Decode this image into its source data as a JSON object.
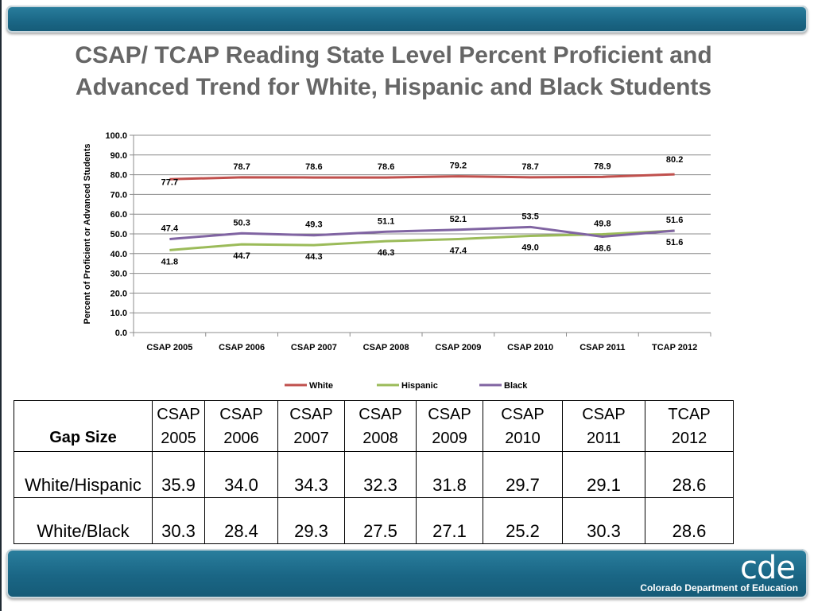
{
  "slide": {
    "title_line1": "CSAP/ TCAP Reading State Level  Percent Proficient and",
    "title_line2": "Advanced Trend for White, Hispanic and Black Students"
  },
  "chart_data": {
    "type": "line",
    "ylabel": "Percent of  Proficient or Advanced Students",
    "xlabel": "",
    "ylim": [
      0,
      100
    ],
    "yticks": [
      "0.0",
      "10.0",
      "20.0",
      "30.0",
      "40.0",
      "50.0",
      "60.0",
      "70.0",
      "80.0",
      "90.0",
      "100.0"
    ],
    "grid": true,
    "legend_position": "bottom",
    "categories": [
      "CSAP 2005",
      "CSAP 2006",
      "CSAP 2007",
      "CSAP 2008",
      "CSAP 2009",
      "CSAP 2010",
      "CSAP 2011",
      "TCAP 2012"
    ],
    "series": [
      {
        "name": "White",
        "color": "#c0504d",
        "values": [
          77.7,
          78.7,
          78.6,
          78.6,
          79.2,
          78.7,
          78.9,
          80.2
        ],
        "labels": [
          "77.7",
          "78.7",
          "78.6",
          "78.6",
          "79.2",
          "78.7",
          "78.9",
          "80.2"
        ]
      },
      {
        "name": "Hispanic",
        "color": "#9bbb59",
        "values": [
          41.8,
          44.7,
          44.3,
          46.3,
          47.4,
          49.0,
          49.8,
          51.6
        ],
        "labels": [
          "41.8",
          "44.7",
          "44.3",
          "46.3",
          "47.4",
          "49.0",
          "49.8",
          "51.6"
        ]
      },
      {
        "name": "Black",
        "color": "#8064a2",
        "values": [
          47.4,
          50.3,
          49.3,
          51.1,
          52.1,
          53.5,
          48.6,
          51.6
        ],
        "labels": [
          "47.4",
          "50.3",
          "49.3",
          "51.1",
          "52.1",
          "53.5",
          "48.6",
          "51.6"
        ]
      }
    ]
  },
  "gap_table": {
    "corner_label": "Gap Size",
    "columns": [
      {
        "line1": "CSAP",
        "line2": "2005"
      },
      {
        "line1": "CSAP",
        "line2": "2006"
      },
      {
        "line1": "CSAP",
        "line2": "2007"
      },
      {
        "line1": "CSAP",
        "line2": "2008"
      },
      {
        "line1": "CSAP",
        "line2": "2009"
      },
      {
        "line1": "CSAP",
        "line2": "2010"
      },
      {
        "line1": "CSAP",
        "line2": "2011"
      },
      {
        "line1": "TCAP",
        "line2": "2012"
      }
    ],
    "rows": [
      {
        "label": "White/Hispanic",
        "values": [
          "35.9",
          "34.0",
          "34.3",
          "32.3",
          "31.8",
          "29.7",
          "29.1",
          "28.6"
        ]
      },
      {
        "label": "White/Black",
        "values": [
          "30.3",
          "28.4",
          "29.3",
          "27.5",
          "27.1",
          "25.2",
          "30.3",
          "28.6"
        ]
      }
    ]
  },
  "footer": {
    "logo_text": "cde",
    "org_name": "Colorado Department of Education"
  },
  "colors": {
    "banner": "#1a6685",
    "title_text": "#666666"
  }
}
